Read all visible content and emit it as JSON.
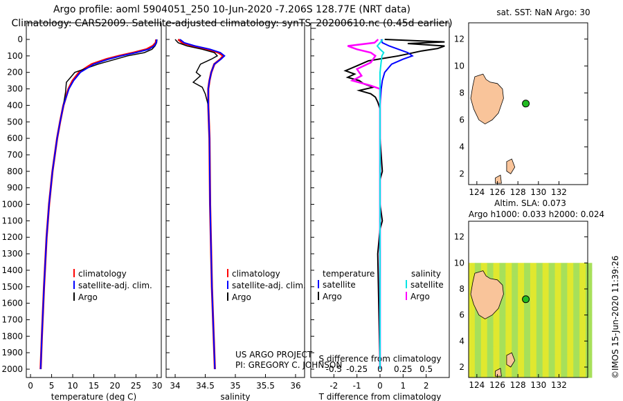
{
  "header": {
    "title_line1": "Argo profile: aoml 5904051_250 10-Jun-2020 -7.206S 128.77E (NRT data)",
    "title_line2": "Climatology: CARS2009. Satellite-adjusted climatology: synTS_20200610.nc (0.45d earlier)"
  },
  "colors": {
    "climatology": "#ff0000",
    "satellite": "#0000ff",
    "argo": "#000000",
    "s_sat": "#00e5e5",
    "s_argo": "#ff00ff",
    "land": "#f9c49a",
    "dot": "#22bb22"
  },
  "depth_ticks": [
    "0",
    "100",
    "200",
    "300",
    "400",
    "500",
    "600",
    "700",
    "800",
    "900",
    "1000",
    "1100",
    "1200",
    "1300",
    "1400",
    "1500",
    "1600",
    "1700",
    "1800",
    "1900",
    "2000"
  ],
  "credits": {
    "project": "US ARGO PROJECT",
    "pi": "PI: GREGORY C. JOHNSON",
    "imos": "©IMOS 15-Jun-2020 11:39:26"
  },
  "chart_data": [
    {
      "type": "line",
      "title": "",
      "xlabel": "temperature (deg C)",
      "ylabel": "",
      "xlim": [
        -1,
        31
      ],
      "ylim": [
        2100,
        -20
      ],
      "x_ticks": [
        "0",
        "5",
        "10",
        "15",
        "20",
        "25",
        "30"
      ],
      "legend": [
        "climatology",
        "satellite-adj. clim.",
        "Argo"
      ],
      "series": [
        {
          "name": "climatology",
          "depth": [
            0,
            20,
            40,
            60,
            80,
            100,
            120,
            150,
            200,
            250,
            300,
            400,
            500,
            600,
            800,
            1000,
            1200,
            1500,
            1800,
            2000
          ],
          "values": [
            29.8,
            29.7,
            29.0,
            27.5,
            24.5,
            21.0,
            18.0,
            14.5,
            11.5,
            10.0,
            9.0,
            7.8,
            7.0,
            6.3,
            5.2,
            4.4,
            3.8,
            3.2,
            2.7,
            2.4
          ]
        },
        {
          "name": "satellite-adj. clim.",
          "depth": [
            0,
            20,
            40,
            60,
            80,
            100,
            120,
            150,
            200,
            250,
            300,
            400,
            500,
            600,
            800,
            1000,
            1200,
            1500,
            1800,
            2000
          ],
          "values": [
            29.9,
            29.8,
            29.3,
            28.0,
            25.0,
            21.5,
            18.5,
            15.0,
            11.8,
            10.2,
            9.1,
            7.8,
            7.0,
            6.3,
            5.2,
            4.4,
            3.8,
            3.2,
            2.7,
            2.4
          ]
        },
        {
          "name": "Argo",
          "depth": [
            0,
            20,
            40,
            60,
            80,
            100,
            150,
            200,
            230,
            260,
            290,
            320,
            400,
            500,
            600,
            800,
            1000
          ],
          "values": [
            30.0,
            29.9,
            29.5,
            28.8,
            27.0,
            23.0,
            16.0,
            10.5,
            9.5,
            8.5,
            8.4,
            8.3,
            7.8,
            7.0,
            6.3,
            5.2,
            4.4
          ]
        }
      ]
    },
    {
      "type": "line",
      "title": "",
      "xlabel": "salinity",
      "ylabel": "",
      "xlim": [
        33.85,
        36.15
      ],
      "ylim": [
        2100,
        -20
      ],
      "x_ticks": [
        "34",
        "34.5",
        "35",
        "35.5",
        "36"
      ],
      "legend": [
        "climatology",
        "satellite-adj. clim.",
        "Argo"
      ],
      "series": [
        {
          "name": "climatology",
          "depth": [
            0,
            20,
            40,
            60,
            80,
            100,
            120,
            150,
            200,
            250,
            300,
            400,
            600,
            1000,
            1500,
            2000
          ],
          "values": [
            34.05,
            34.12,
            34.3,
            34.55,
            34.72,
            34.8,
            34.75,
            34.65,
            34.6,
            34.57,
            34.55,
            34.55,
            34.57,
            34.58,
            34.61,
            34.66
          ]
        },
        {
          "name": "satellite-adj. clim.",
          "depth": [
            0,
            20,
            40,
            60,
            80,
            100,
            120,
            150,
            200,
            250,
            300,
            400,
            600,
            1000,
            1500,
            2000
          ],
          "values": [
            34.08,
            34.15,
            34.33,
            34.58,
            34.75,
            34.82,
            34.76,
            34.65,
            34.6,
            34.57,
            34.55,
            34.55,
            34.57,
            34.58,
            34.61,
            34.66
          ]
        },
        {
          "name": "Argo",
          "depth": [
            0,
            20,
            40,
            60,
            80,
            100,
            120,
            150,
            200,
            220,
            260,
            290,
            330,
            400,
            600,
            1000
          ],
          "values": [
            34.0,
            34.05,
            34.2,
            34.45,
            34.65,
            34.7,
            34.6,
            34.42,
            34.35,
            34.42,
            34.3,
            34.45,
            34.5,
            34.55,
            34.57,
            34.58
          ]
        }
      ]
    },
    {
      "type": "line",
      "title": "",
      "xlabel": "T difference from climatology",
      "xlabel_top": "S difference from climatology",
      "xlim": [
        -3,
        3
      ],
      "ylim": [
        2100,
        -20
      ],
      "x_ticks": [
        "-2",
        "-1",
        "0",
        "1",
        "2"
      ],
      "x_ticks_top": [
        "-0.5",
        "-0.25",
        "0",
        "0.25",
        "0.5"
      ],
      "legend_temperature": {
        "heading": "temperature",
        "items": [
          "satellite",
          "Argo"
        ]
      },
      "legend_salinity": {
        "heading": "salinity",
        "items": [
          "satellite",
          "Argo"
        ]
      },
      "series": [
        {
          "name": "T satellite",
          "depth": [
            0,
            20,
            40,
            60,
            80,
            100,
            120,
            150,
            200,
            250,
            300,
            400,
            2000
          ],
          "values": [
            0.05,
            0.1,
            0.4,
            0.8,
            1.2,
            1.4,
            1.0,
            0.5,
            0.2,
            0.1,
            0.05,
            0.0,
            0.0
          ]
        },
        {
          "name": "T Argo",
          "depth": [
            0,
            15,
            25,
            40,
            55,
            70,
            85,
            100,
            130,
            160,
            190,
            210,
            230,
            250,
            270,
            290,
            310,
            330,
            350,
            380,
            420,
            600,
            800,
            850,
            1000,
            1100,
            1150,
            1300,
            2000
          ],
          "values": [
            0.2,
            2.8,
            1.2,
            2.8,
            2.5,
            1.8,
            1.3,
            0.8,
            -0.5,
            -1.0,
            -1.5,
            -1.1,
            -1.4,
            -0.9,
            -0.7,
            -0.3,
            -0.9,
            -0.4,
            -0.2,
            -0.1,
            0.0,
            0.0,
            0.1,
            0.0,
            0.0,
            0.1,
            0.0,
            -0.1,
            0.0
          ]
        },
        {
          "name": "S satellite",
          "depth": [
            0,
            20,
            40,
            60,
            80,
            100,
            150,
            200,
            300,
            2000
          ],
          "values": [
            0.03,
            0.0,
            -0.03,
            0.0,
            0.04,
            0.02,
            0.01,
            0.0,
            0.0,
            0.0
          ]
        },
        {
          "name": "S Argo",
          "depth": [
            0,
            20,
            40,
            60,
            80,
            100,
            140,
            180,
            220,
            250,
            280,
            300,
            400,
            2000
          ],
          "values": [
            -0.02,
            -0.06,
            -0.35,
            -0.25,
            -0.1,
            -0.05,
            -0.1,
            -0.25,
            -0.2,
            -0.3,
            -0.1,
            0.0,
            0.0,
            0.0
          ]
        }
      ]
    },
    {
      "type": "scatter",
      "title": "sat. SST: NaN Argo: 30",
      "xlim": [
        123.2,
        134.8
      ],
      "ylim": [
        1.2,
        13.2
      ],
      "x_ticks": [
        "124",
        "126",
        "128",
        "130",
        "132"
      ],
      "y_ticks": [
        "2",
        "4",
        "6",
        "8",
        "10",
        "12"
      ],
      "points": [
        {
          "name": "Argo float",
          "x": 128.77,
          "y": 7.21
        }
      ]
    },
    {
      "type": "heatmap",
      "title": "Altim. SLA: 0.073",
      "subtitle": "Argo h1000: 0.033 h2000: 0.024",
      "xlim": [
        123.2,
        134.8
      ],
      "ylim": [
        1.2,
        13.2
      ],
      "x_ticks": [
        "124",
        "126",
        "128",
        "130",
        "132"
      ],
      "y_ticks": [
        "2",
        "4",
        "6",
        "8",
        "10",
        "12"
      ],
      "data_extent": {
        "lon": [
          123.2,
          134.8
        ],
        "lat": [
          1.2,
          10.0
        ]
      },
      "points": [
        {
          "name": "Argo float",
          "x": 128.77,
          "y": 7.21
        }
      ]
    }
  ]
}
